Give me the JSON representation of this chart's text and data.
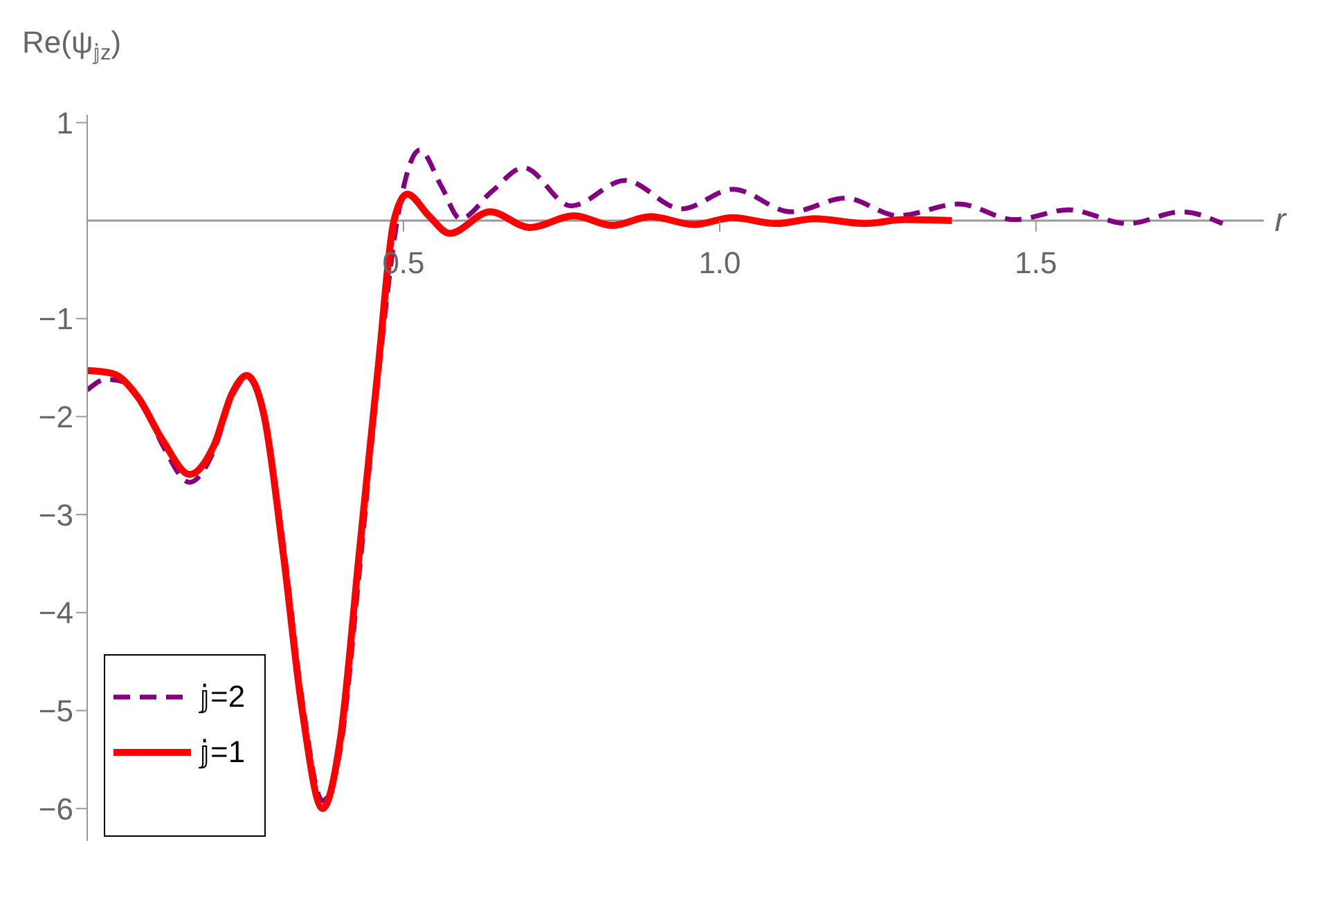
{
  "chart_data": {
    "type": "line",
    "ylabel": "Re(ψ$_{𝕛z}$)",
    "xlabel": "r",
    "xlim": [
      0,
      1.86
    ],
    "ylim": [
      -6.33,
      1.08
    ],
    "xticks": [
      0.5,
      {
        "value": 1,
        "label": "1.0"
      },
      1.5
    ],
    "yticks": [
      -6,
      -5,
      -4,
      -3,
      -2,
      -1,
      1
    ],
    "grid": false,
    "legend": "bottom left",
    "marker": "none",
    "series": [
      {
        "name": "𝕛=2",
        "color": "#800080",
        "line_style": "dashed",
        "x": [
          0,
          0.03,
          0.06,
          0.09,
          0.12,
          0.162,
          0.2,
          0.23,
          0.252,
          0.28,
          0.31,
          0.34,
          0.372,
          0.4,
          0.43,
          0.46,
          0.49,
          0.526,
          0.56,
          0.59,
          0.64,
          0.69,
          0.765,
          0.85,
          0.94,
          1.021,
          1.113,
          1.199,
          1.282,
          1.378,
          1.466,
          1.551,
          1.645,
          1.731,
          1.795
        ],
        "values": [
          -1.73,
          -1.62,
          -1.65,
          -1.9,
          -2.3,
          -2.67,
          -2.35,
          -1.78,
          -1.6,
          -2.0,
          -3.3,
          -4.9,
          -5.92,
          -5.4,
          -3.6,
          -1.6,
          0.0,
          0.72,
          0.35,
          0.02,
          0.3,
          0.54,
          0.15,
          0.41,
          0.12,
          0.32,
          0.09,
          0.23,
          0.05,
          0.17,
          0.01,
          0.11,
          -0.03,
          0.09,
          -0.03
        ]
      },
      {
        "name": "𝕛=1",
        "color": "#ff0000",
        "line_style": "solid",
        "x": [
          0,
          0.04,
          0.08,
          0.12,
          0.162,
          0.2,
          0.23,
          0.252,
          0.28,
          0.31,
          0.34,
          0.372,
          0.4,
          0.43,
          0.46,
          0.485,
          0.506,
          0.54,
          0.573,
          0.637,
          0.7,
          0.77,
          0.83,
          0.89,
          0.96,
          1.02,
          1.09,
          1.15,
          1.23,
          1.29,
          1.367
        ],
        "values": [
          -1.53,
          -1.56,
          -1.8,
          -2.25,
          -2.59,
          -2.3,
          -1.75,
          -1.58,
          -2.0,
          -3.4,
          -5.0,
          -6.0,
          -5.3,
          -3.4,
          -1.5,
          0.0,
          0.27,
          0.05,
          -0.13,
          0.09,
          -0.07,
          0.05,
          -0.05,
          0.04,
          -0.04,
          0.03,
          -0.03,
          0.02,
          -0.03,
          0.01,
          0.0
        ]
      }
    ]
  }
}
